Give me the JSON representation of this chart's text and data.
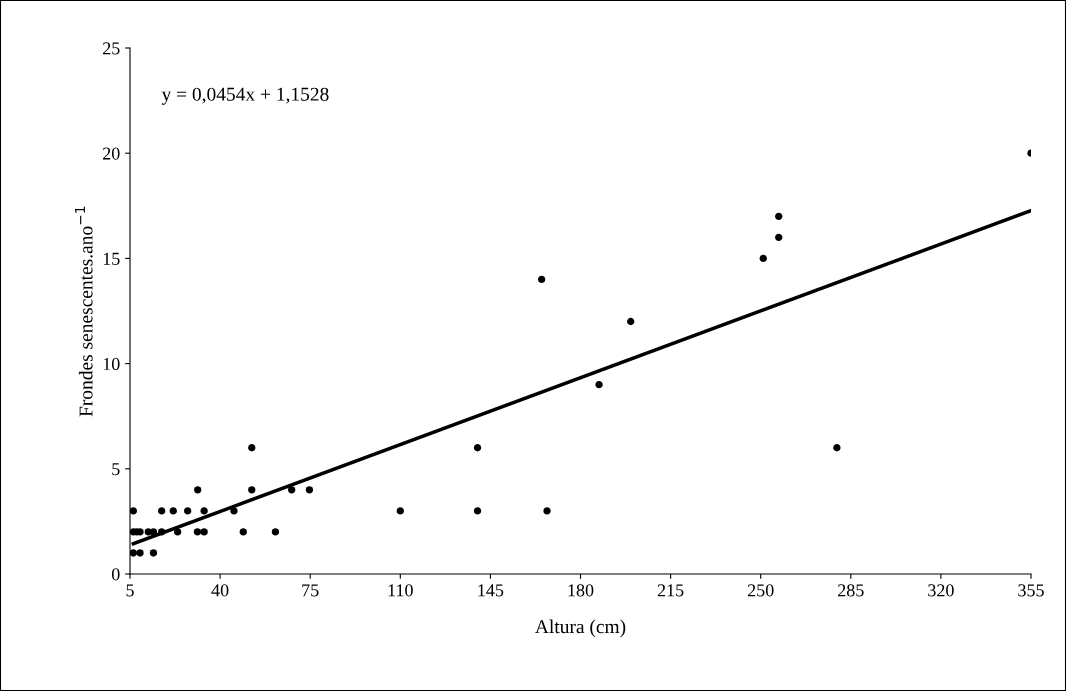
{
  "chart_data": {
    "type": "scatter",
    "xlabel": "Altura (cm)",
    "ylabel": "Frondes senescentes.ano$^{−1}$",
    "annotations": [
      "y = 0,0454x + 1,1528"
    ],
    "xlim": [
      5,
      355
    ],
    "xticks": [
      5,
      40,
      75,
      110,
      145,
      180,
      215,
      250,
      285,
      320,
      355
    ],
    "ylim": [
      0,
      25
    ],
    "yticks": [
      0,
      5,
      10,
      15,
      20,
      25
    ],
    "grid": false,
    "legend": false,
    "series": [
      {
        "color": "#000000",
        "marker": "circle",
        "x": [
          6.3,
          7.6,
          8.9,
          12.1,
          14.1,
          17.3,
          23.5,
          31.2,
          33.8,
          49,
          61.5,
          6.3,
          8.9,
          14.1,
          6.3,
          17.3,
          21.8,
          27.4,
          33.8,
          45.4,
          110,
          140,
          167,
          31.3,
          52.3,
          67.8,
          74.7,
          52.3,
          140,
          279.6,
          187.2,
          199.5,
          164.9,
          251,
          257,
          257,
          355
        ],
        "values": [
          2,
          2,
          2,
          2,
          2,
          2,
          2,
          2,
          2,
          2,
          2,
          1,
          1,
          1,
          3,
          3,
          3,
          3,
          3,
          3,
          3,
          3,
          3,
          4,
          4,
          4,
          4,
          6,
          6,
          6,
          9,
          12,
          14,
          15,
          17,
          16,
          20
        ]
      },
      {
        "type": "line",
        "color": "#000000",
        "x": [
          6.3,
          355
        ],
        "values": [
          1.44,
          17.27
        ]
      }
    ]
  }
}
